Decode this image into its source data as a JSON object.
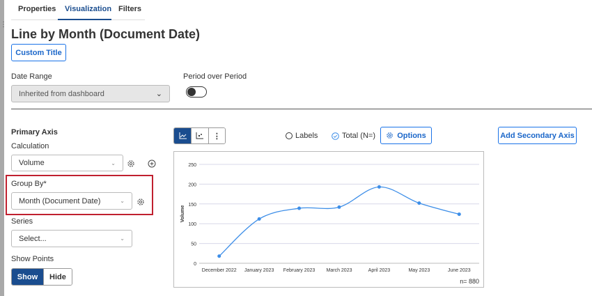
{
  "tabs": [
    {
      "label": "Properties"
    },
    {
      "label": "Visualization",
      "active": true
    },
    {
      "label": "Filters"
    }
  ],
  "title": "Line by Month (Document Date)",
  "custom_title_label": "Custom Title",
  "date_range": {
    "label": "Date Range",
    "value": "Inherited from dashboard"
  },
  "period_over_period": {
    "label": "Period over Period",
    "enabled": false
  },
  "primary_axis": {
    "heading": "Primary Axis",
    "calculation": {
      "label": "Calculation",
      "value": "Volume"
    },
    "group_by": {
      "label": "Group By*",
      "value": "Month (Document Date)"
    },
    "series": {
      "label": "Series",
      "placeholder": "Select..."
    },
    "show_points": {
      "label": "Show Points",
      "options": [
        "Show",
        "Hide"
      ],
      "selected": "Show"
    }
  },
  "chart_toolbar": {
    "labels_option": "Labels",
    "labels_checked": false,
    "total_option": "Total (N=)",
    "total_checked": true,
    "options_label": "Options",
    "add_secondary_label": "Add Secondary Axis"
  },
  "colors": {
    "accent": "#1a4d8f",
    "link": "#1a66c9",
    "series": "#3d8ee8",
    "highlight": "#c0202f"
  },
  "chart_data": {
    "type": "line",
    "categories": [
      "December 2022",
      "January 2023",
      "February 2023",
      "March 2023",
      "April 2023",
      "May 2023",
      "June 2023"
    ],
    "values": [
      18,
      112,
      139,
      142,
      193,
      152,
      124
    ],
    "ylabel": "Volume",
    "xlabel": "",
    "ylim": [
      0,
      250
    ],
    "yticks": [
      0,
      50,
      100,
      150,
      200,
      250
    ],
    "grid": true,
    "smooth": true,
    "show_points": true,
    "n_label": "n= 880"
  }
}
